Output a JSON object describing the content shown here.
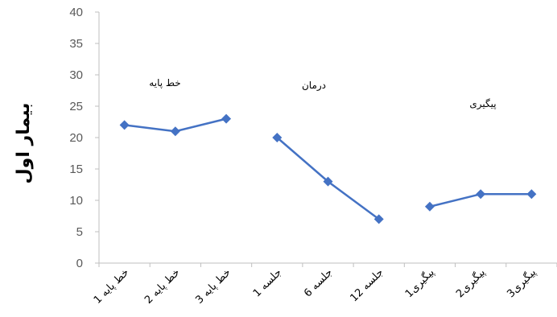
{
  "chart_data": {
    "type": "line",
    "ylabel": "بیمار اول",
    "ylim": [
      0,
      40
    ],
    "yticks": [
      0,
      5,
      10,
      15,
      20,
      25,
      30,
      35,
      40
    ],
    "grid": false,
    "categories": [
      "خط پایه 1",
      "خط پایه 2",
      "خط پایه 3",
      "جلسه 1",
      "جلسه 6",
      "جلسه 12",
      "پیگیری1",
      "پیگیری2",
      "پیگیری3"
    ],
    "series": [
      {
        "values": [
          22,
          21,
          23,
          null,
          null,
          null,
          null,
          null,
          null
        ]
      },
      {
        "values": [
          null,
          null,
          null,
          20,
          13,
          7,
          null,
          null,
          null
        ]
      },
      {
        "values": [
          null,
          null,
          null,
          null,
          null,
          null,
          9,
          11,
          11
        ]
      }
    ],
    "phase_labels": [
      "خط پایه",
      "درمان",
      "پیگیری"
    ],
    "colors": {
      "line": "#4472C4",
      "axis": "#BFBFBF",
      "tick_text": "#595959"
    }
  }
}
